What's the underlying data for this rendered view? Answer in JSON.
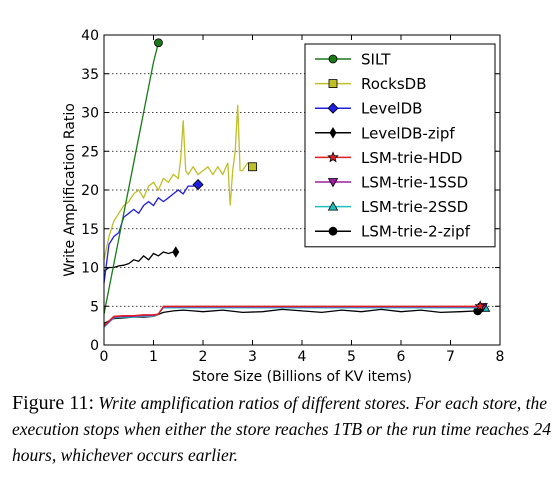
{
  "caption": {
    "label": "Figure 11:",
    "text": "Write amplification ratios of different stores. For each store, the execution stops when either the store reaches 1TB or the run time reaches 24 hours, whichever occurs earlier."
  },
  "chart_data": {
    "type": "line",
    "title": "",
    "xlabel": "Store Size (Billions of KV items)",
    "ylabel": "Write Amplification Ratio",
    "xlim": [
      0,
      8
    ],
    "ylim": [
      0,
      40
    ],
    "xticks": [
      "0",
      "1",
      "2",
      "3",
      "4",
      "5",
      "6",
      "7",
      "8"
    ],
    "yticks": [
      "0",
      "5",
      "10",
      "15",
      "20",
      "25",
      "30",
      "35",
      "40"
    ],
    "grid": "horizontal-dotted",
    "legend_position": "top-right",
    "series": [
      {
        "name": "SILT",
        "color": "#1a7a1a",
        "marker": "circle",
        "x": [
          0.0,
          0.2,
          0.4,
          0.6,
          0.8,
          1.0,
          1.1
        ],
        "y": [
          4.0,
          10.5,
          17.0,
          23.5,
          30.0,
          36.5,
          39.0
        ]
      },
      {
        "name": "RocksDB",
        "color": "#bfbf2a",
        "marker": "square",
        "x": [
          0.0,
          0.1,
          0.2,
          0.3,
          0.4,
          0.5,
          0.6,
          0.7,
          0.8,
          0.9,
          1.0,
          1.1,
          1.2,
          1.3,
          1.4,
          1.5,
          1.55,
          1.6,
          1.65,
          1.7,
          1.8,
          1.9,
          2.0,
          2.1,
          2.2,
          2.3,
          2.4,
          2.5,
          2.55,
          2.6,
          2.65,
          2.7,
          2.75,
          2.8,
          2.9,
          3.0
        ],
        "y": [
          11.0,
          14.0,
          16.0,
          17.0,
          18.0,
          18.5,
          19.5,
          20.0,
          19.0,
          20.5,
          21.0,
          20.0,
          21.5,
          21.0,
          22.0,
          21.5,
          24.0,
          29.0,
          22.5,
          22.0,
          23.0,
          22.0,
          22.5,
          23.0,
          22.0,
          23.0,
          22.0,
          23.5,
          18.0,
          22.5,
          25.0,
          31.0,
          22.5,
          22.5,
          23.5,
          23.0
        ]
      },
      {
        "name": "LevelDB",
        "color": "#1f1fe0",
        "marker": "diamond",
        "x": [
          0.0,
          0.1,
          0.2,
          0.3,
          0.4,
          0.5,
          0.6,
          0.7,
          0.8,
          0.9,
          1.0,
          1.1,
          1.2,
          1.3,
          1.4,
          1.5,
          1.6,
          1.7,
          1.8,
          1.9
        ],
        "y": [
          8.0,
          13.0,
          14.0,
          14.5,
          16.5,
          17.0,
          17.5,
          17.0,
          18.0,
          18.5,
          18.0,
          19.0,
          18.5,
          19.0,
          19.5,
          20.0,
          19.5,
          20.5,
          20.5,
          20.7
        ]
      },
      {
        "name": "LevelDB-zipf",
        "color": "#000000",
        "marker": "thin-diamond",
        "x": [
          0.0,
          0.1,
          0.2,
          0.3,
          0.4,
          0.5,
          0.6,
          0.7,
          0.8,
          0.9,
          1.0,
          1.1,
          1.2,
          1.3,
          1.4,
          1.45
        ],
        "y": [
          9.5,
          10.0,
          10.0,
          10.2,
          10.3,
          10.5,
          11.0,
          10.8,
          11.5,
          11.0,
          11.8,
          11.5,
          12.0,
          11.8,
          12.0,
          12.0
        ]
      },
      {
        "name": "LSM-trie-HDD",
        "color": "#e01f1f",
        "marker": "star",
        "x": [
          0.0,
          0.2,
          0.4,
          0.6,
          0.8,
          1.0,
          1.1,
          1.2,
          2.0,
          3.0,
          4.0,
          5.0,
          6.0,
          7.0,
          7.6
        ],
        "y": [
          2.5,
          3.7,
          3.8,
          3.8,
          3.9,
          3.9,
          4.0,
          5.0,
          5.0,
          5.0,
          5.0,
          5.0,
          5.0,
          5.0,
          5.0
        ]
      },
      {
        "name": "LSM-trie-1SSD",
        "color": "#a01fa0",
        "marker": "triangle-down",
        "x": [
          0.0,
          0.2,
          0.4,
          0.6,
          0.8,
          1.0,
          1.1,
          1.2,
          2.0,
          3.0,
          4.0,
          5.0,
          6.0,
          7.0,
          7.65
        ],
        "y": [
          2.4,
          3.6,
          3.7,
          3.7,
          3.8,
          3.8,
          4.0,
          4.9,
          4.9,
          4.9,
          4.9,
          4.9,
          4.9,
          4.9,
          4.9
        ]
      },
      {
        "name": "LSM-trie-2SSD",
        "color": "#1fbfbf",
        "marker": "triangle-up",
        "x": [
          0.0,
          0.2,
          0.4,
          0.6,
          0.8,
          1.0,
          1.1,
          1.2,
          2.0,
          3.0,
          4.0,
          5.0,
          6.0,
          7.0,
          7.7
        ],
        "y": [
          2.3,
          3.5,
          3.6,
          3.6,
          3.7,
          3.7,
          4.0,
          4.8,
          4.8,
          4.8,
          4.8,
          4.8,
          4.8,
          4.8,
          4.8
        ]
      },
      {
        "name": "LSM-trie-2-zipf",
        "color": "#000000",
        "marker": "circle",
        "x": [
          0.0,
          0.2,
          0.4,
          0.6,
          0.8,
          1.0,
          1.2,
          1.4,
          1.6,
          1.8,
          2.0,
          2.4,
          2.8,
          3.2,
          3.6,
          4.0,
          4.4,
          4.8,
          5.2,
          5.6,
          6.0,
          6.4,
          6.8,
          7.2,
          7.55
        ],
        "y": [
          2.8,
          3.4,
          3.5,
          3.6,
          3.6,
          3.7,
          4.2,
          4.4,
          4.5,
          4.4,
          4.3,
          4.5,
          4.2,
          4.3,
          4.6,
          4.4,
          4.2,
          4.5,
          4.3,
          4.6,
          4.3,
          4.5,
          4.2,
          4.3,
          4.4
        ]
      }
    ]
  }
}
